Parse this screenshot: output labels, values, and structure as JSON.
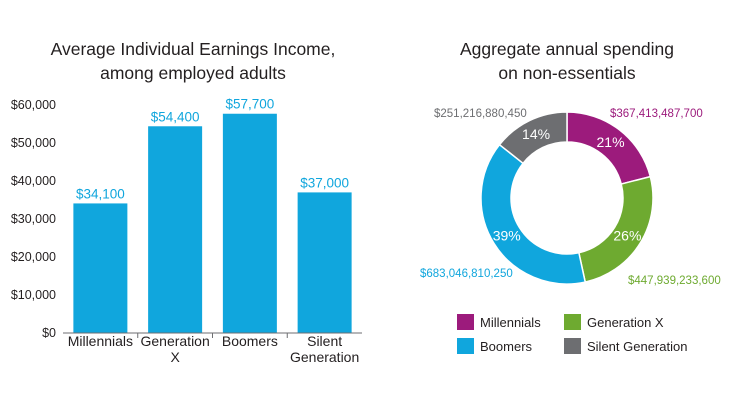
{
  "chart_data": [
    {
      "type": "bar",
      "title_lines": [
        "Average Individual Earnings Income,",
        "among employed adults"
      ],
      "categories": [
        {
          "lines": [
            "Millennials"
          ]
        },
        {
          "lines": [
            "Generation",
            "X"
          ]
        },
        {
          "lines": [
            "Boomers"
          ]
        },
        {
          "lines": [
            "Silent",
            "Generation"
          ]
        }
      ],
      "values": [
        34100,
        54400,
        57700,
        37000
      ],
      "data_labels": [
        "$34,100",
        "$54,400",
        "$57,700",
        "$37,000"
      ],
      "ylim": [
        0,
        60000
      ],
      "yticks": [
        0,
        10000,
        20000,
        30000,
        40000,
        50000,
        60000
      ],
      "ytick_labels": [
        "$0",
        "$10,000",
        "$20,000",
        "$30,000",
        "$40,000",
        "$50,000",
        "$60,000"
      ],
      "xlabel": "",
      "ylabel": "",
      "bar_color": "#10a6dd",
      "label_color": "#10a6dd",
      "grid": false
    },
    {
      "type": "pie",
      "donut": true,
      "title_lines": [
        "Aggregate annual spending",
        "on non-essentials"
      ],
      "slices": [
        {
          "name": "Millennials",
          "value": 367413487700,
          "percent_label": "21%",
          "value_label": "$367,413,487,700",
          "color": "#9c1b7c"
        },
        {
          "name": "Generation X",
          "value": 447939233600,
          "percent_label": "26%",
          "value_label": "$447,939,233,600",
          "color": "#6eaa30"
        },
        {
          "name": "Boomers",
          "value": 683046810250,
          "percent_label": "39%",
          "value_label": "$683,046,810,250",
          "color": "#10a6dd"
        },
        {
          "name": "Silent Generation",
          "value": 251216880450,
          "percent_label": "14%",
          "value_label": "$251,216,880,450",
          "color": "#6d6e71"
        }
      ],
      "legend_position": "bottom",
      "legend_order": [
        "Millennials",
        "Generation X",
        "Boomers",
        "Silent Generation"
      ]
    }
  ]
}
